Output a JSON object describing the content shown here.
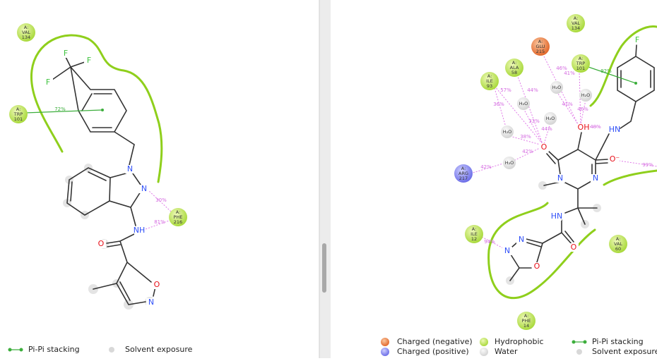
{
  "left": {
    "residues": [
      {
        "chain": "A:",
        "name": "VAL",
        "number": "134"
      },
      {
        "chain": "A:",
        "name": "TRP",
        "number": "101"
      },
      {
        "chain": "A:",
        "name": "PHE",
        "number": "216"
      }
    ],
    "percentages": [
      "72%",
      "30%",
      "81%"
    ],
    "atoms": [
      "F",
      "F",
      "F",
      "N",
      "N",
      "NH",
      "O",
      "O",
      "N"
    ],
    "legend": [
      "Pi-Pi stacking",
      "Solvent exposure"
    ]
  },
  "right": {
    "residues": [
      {
        "chain": "A:",
        "name": "VAL",
        "number": "134"
      },
      {
        "chain": "A:",
        "name": "GLU",
        "number": "215"
      },
      {
        "chain": "A:",
        "name": "TRP",
        "number": "101"
      },
      {
        "chain": "A:",
        "name": "ALA",
        "number": "58"
      },
      {
        "chain": "A:",
        "name": "ILE",
        "number": "93"
      },
      {
        "chain": "A:",
        "name": "ARG",
        "number": "217"
      },
      {
        "chain": "A:",
        "name": "ILE",
        "number": "12"
      },
      {
        "chain": "A:",
        "name": "VAL",
        "number": "60"
      },
      {
        "chain": "A:",
        "name": "PHE",
        "number": "14"
      }
    ],
    "waters": [
      "H₂O",
      "H₂O",
      "H₂O",
      "H₂O",
      "H₂O",
      "H₂O"
    ],
    "percentages": [
      "92%",
      "46%",
      "41%",
      "41%",
      "46%",
      "44%",
      "57%",
      "36%",
      "33%",
      "44%",
      "38%",
      "42%",
      "42%",
      "48%",
      "99%",
      "94%"
    ],
    "atoms": [
      "F",
      "OH",
      "HN",
      "O",
      "O⁻",
      "N",
      "N",
      "HN",
      "O",
      "N",
      "N",
      "O"
    ],
    "legend": [
      "Charged (negative)",
      "Charged (positive)",
      "Hydrophobic",
      "Water",
      "Pi-Pi stacking",
      "Solvent exposure"
    ]
  }
}
